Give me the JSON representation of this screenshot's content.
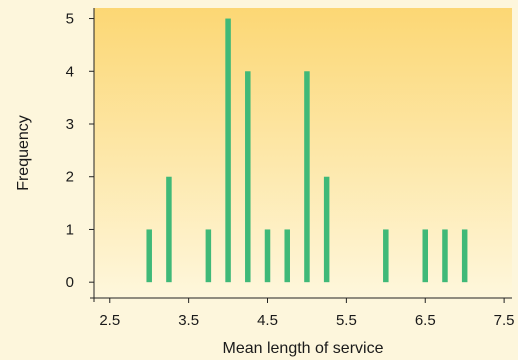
{
  "chart_data": {
    "type": "bar",
    "title": "",
    "xlabel": "Mean length of service",
    "ylabel": "Frequency",
    "xlim": [
      2.3,
      7.6
    ],
    "ylim": [
      -0.3,
      5.2
    ],
    "xticks": [
      "2.5",
      "3.5",
      "4.5",
      "5.5",
      "6.5",
      "7.5"
    ],
    "yticks": [
      "0",
      "1",
      "2",
      "3",
      "4",
      "5"
    ],
    "grid": false,
    "x": [
      3.0,
      3.25,
      3.75,
      4.0,
      4.25,
      4.5,
      4.75,
      5.0,
      5.25,
      6.0,
      6.5,
      6.75,
      7.0
    ],
    "values": [
      1,
      2,
      1,
      5,
      4,
      1,
      1,
      4,
      2,
      1,
      1,
      1,
      1
    ]
  },
  "colors": {
    "bar": "#3fb978",
    "page_background": "#fdf6dc",
    "plot_gradient_top": "#fcd774",
    "plot_gradient_bottom": "#fef7dc",
    "axis": "#222222"
  }
}
